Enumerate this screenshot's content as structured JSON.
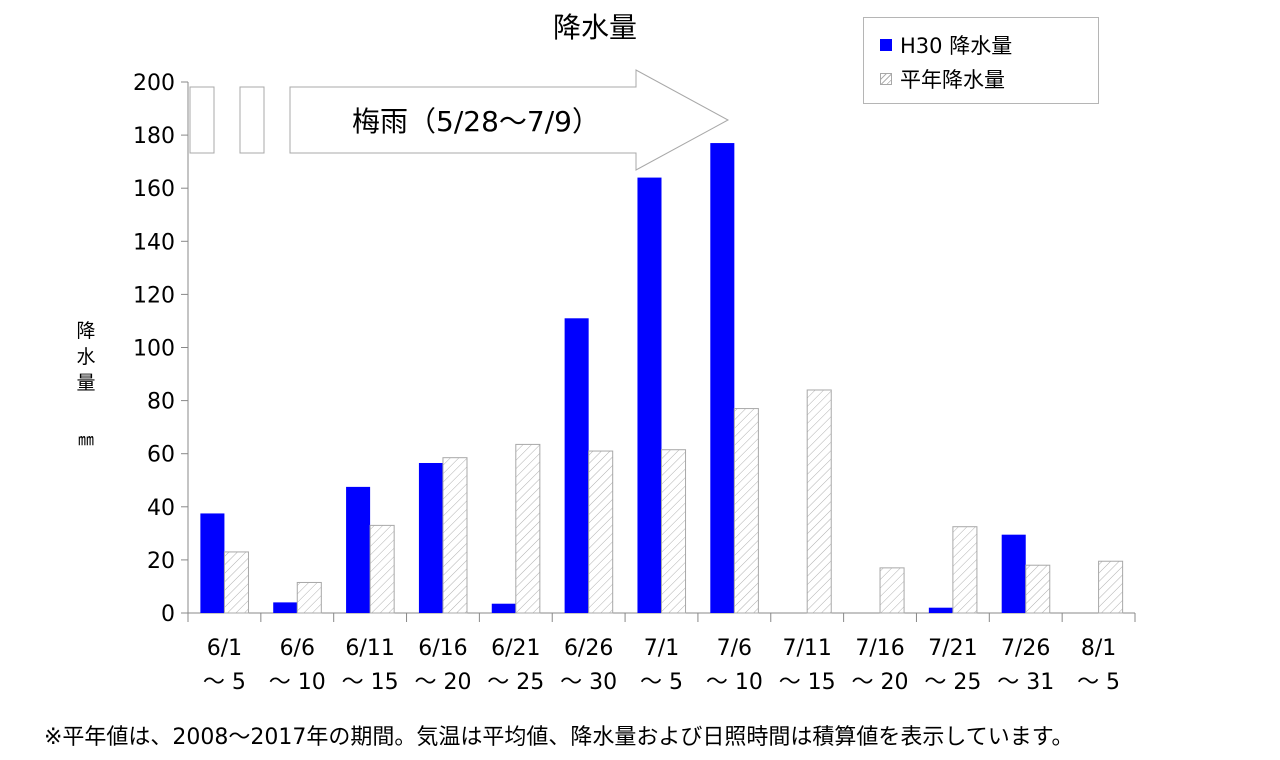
{
  "title": "降水量",
  "footnote": "※平年値は、2008〜2017年の期間。気温は平均値、降水量および日照時間は積算値を表示しています。",
  "annotation": {
    "label": "梅雨（5/28〜7/9）"
  },
  "ylabel": "降水量",
  "yunit": "㎜",
  "colors": {
    "h30": "#0000ff",
    "normal_stroke": "#a8a8a8",
    "normal_hatch": "#b0b0b0"
  },
  "chart_data": {
    "type": "bar",
    "title": "降水量",
    "ylabel": "降水量 ㎜",
    "xlabel": "",
    "ylim": [
      0,
      200
    ],
    "yticks": [
      0,
      20,
      40,
      60,
      80,
      100,
      120,
      140,
      160,
      180,
      200
    ],
    "legend_position": "top-right",
    "grid": false,
    "categories": [
      [
        "6/1",
        "〜 5"
      ],
      [
        "6/6",
        "〜 10"
      ],
      [
        "6/11",
        "〜 15"
      ],
      [
        "6/16",
        "〜 20"
      ],
      [
        "6/21",
        "〜 25"
      ],
      [
        "6/26",
        "〜 30"
      ],
      [
        "7/1",
        "〜 5"
      ],
      [
        "7/6",
        "〜 10"
      ],
      [
        "7/11",
        "〜 15"
      ],
      [
        "7/16",
        "〜 20"
      ],
      [
        "7/21",
        "〜 25"
      ],
      [
        "7/26",
        "〜 31"
      ],
      [
        "8/1",
        "〜 5"
      ]
    ],
    "series": [
      {
        "name": "H30 降水量",
        "values": [
          37.5,
          4,
          47.5,
          56.5,
          3.5,
          111,
          164,
          177,
          0,
          0,
          2,
          29.5,
          0
        ]
      },
      {
        "name": "平年降水量",
        "values": [
          23,
          11.5,
          33,
          58.5,
          63.5,
          61,
          61.5,
          77,
          84,
          17,
          32.5,
          18,
          19.5
        ]
      }
    ]
  }
}
